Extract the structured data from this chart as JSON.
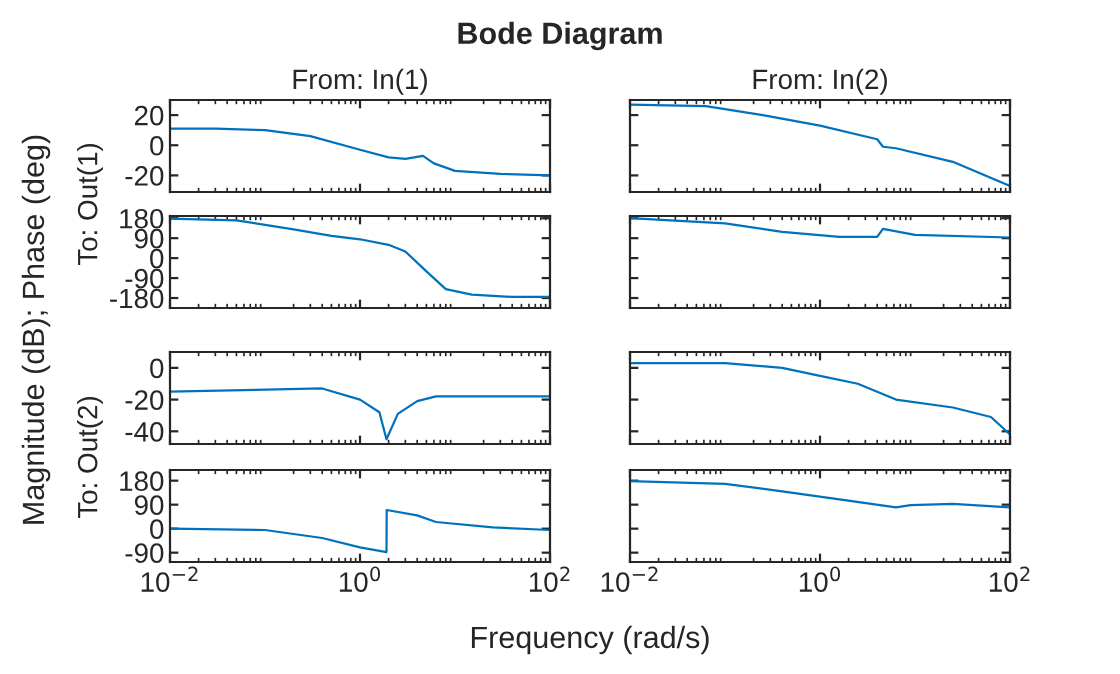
{
  "chart_data": [
    {
      "type": "line",
      "title": "Bode Diagram",
      "subtitle": "From: In(1)",
      "ylabel": "To: Out(1)",
      "annotations": [
        "Magnitude (dB); Phase (deg)"
      ],
      "log": "x",
      "xlim": [
        0.01,
        100
      ],
      "ylim": [
        -31,
        30
      ],
      "yticks": [
        -20,
        0,
        20
      ],
      "tick_labels": "y",
      "series": [
        {
          "color": "#0072bd",
          "x": [
            0.01,
            0.03,
            0.1,
            0.3,
            1,
            2,
            3,
            4.6,
            6,
            10,
            30,
            100
          ],
          "values": [
            11,
            11,
            10,
            6,
            -3,
            -8,
            -9,
            -7,
            -12,
            -17,
            -19,
            -20
          ]
        }
      ]
    },
    {
      "type": "line",
      "subtitle": "From: In(2)",
      "log": "x",
      "xlim": [
        0.01,
        100
      ],
      "ylim": [
        -31,
        30
      ],
      "yticks": [
        -20,
        0,
        20
      ],
      "tick_labels": false,
      "series": [
        {
          "color": "#0072bd",
          "x": [
            0.01,
            0.063,
            0.25,
            1,
            4,
            4.6,
            6.3,
            25,
            100
          ],
          "values": [
            27,
            26,
            20,
            13,
            4,
            -1,
            -2,
            -11,
            -27
          ]
        }
      ]
    },
    {
      "type": "line",
      "log": "x",
      "xlim": [
        0.01,
        100
      ],
      "ylim": [
        -225,
        190
      ],
      "yticks": [
        -180,
        -90,
        0,
        90,
        180
      ],
      "tick_labels": "y",
      "series": [
        {
          "color": "#0072bd",
          "x": [
            0.01,
            0.05,
            0.2,
            0.5,
            1,
            2,
            3,
            5,
            8,
            15,
            40,
            100
          ],
          "values": [
            178,
            170,
            130,
            100,
            85,
            60,
            30,
            -60,
            -140,
            -165,
            -175,
            -175
          ]
        }
      ]
    },
    {
      "type": "line",
      "log": "x",
      "xlim": [
        0.01,
        100
      ],
      "ylim": [
        -225,
        190
      ],
      "yticks": [
        -180,
        -90,
        0,
        90,
        180
      ],
      "tick_labels": false,
      "series": [
        {
          "color": "#0072bd",
          "x": [
            0.01,
            0.1,
            0.4,
            1.6,
            4,
            4.6,
            10,
            100
          ],
          "values": [
            180,
            157,
            118,
            96,
            96,
            132,
            105,
            93
          ]
        }
      ]
    },
    {
      "type": "line",
      "ylabel": "To: Out(2)",
      "log": "x",
      "xlim": [
        0.01,
        100
      ],
      "ylim": [
        -48,
        10
      ],
      "yticks": [
        -40,
        -20,
        0
      ],
      "tick_labels": "y",
      "series": [
        {
          "color": "#0072bd",
          "x": [
            0.01,
            0.4,
            1,
            1.6,
            1.9,
            2.5,
            4,
            6.3,
            100
          ],
          "values": [
            -15,
            -13,
            -20,
            -28,
            -45,
            -29,
            -21,
            -18,
            -18
          ]
        }
      ]
    },
    {
      "type": "line",
      "log": "x",
      "xlim": [
        0.01,
        100
      ],
      "ylim": [
        -48,
        10
      ],
      "yticks": [
        -40,
        -20,
        0
      ],
      "tick_labels": false,
      "series": [
        {
          "color": "#0072bd",
          "x": [
            0.01,
            0.1,
            0.4,
            1,
            2.5,
            6.3,
            25,
            63,
            100
          ],
          "values": [
            3,
            3,
            0,
            -5,
            -10,
            -20,
            -25,
            -31,
            -42
          ]
        }
      ]
    },
    {
      "type": "line",
      "xlabel": "Frequency (rad/s)",
      "log": "x",
      "xlim": [
        0.01,
        100
      ],
      "xticks": [
        {
          "value": 0.01,
          "label": "10$^{−2}$"
        },
        {
          "value": 1,
          "label": "10$^{0}$"
        },
        {
          "value": 100,
          "label": "10$^{2}$"
        }
      ],
      "ylim": [
        -125,
        220
      ],
      "yticks": [
        -90,
        0,
        90,
        180
      ],
      "series": [
        {
          "color": "#0072bd",
          "x": [
            0.01,
            0.1,
            0.4,
            1,
            1.9,
            1.91,
            4,
            6.3,
            25,
            100
          ],
          "values": [
            0,
            -5,
            -35,
            -70,
            -88,
            70,
            50,
            25,
            5,
            -5
          ]
        }
      ]
    },
    {
      "type": "line",
      "log": "x",
      "xlim": [
        0.01,
        100
      ],
      "xticks": [
        {
          "value": 0.01,
          "label": "10$^{−2}$"
        },
        {
          "value": 1,
          "label": "10$^{0}$"
        },
        {
          "value": 100,
          "label": "10$^{2}$"
        }
      ],
      "ylim": [
        -125,
        220
      ],
      "yticks": [
        -90,
        0,
        90,
        180
      ],
      "tick_labels": "x",
      "series": [
        {
          "color": "#0072bd",
          "x": [
            0.01,
            0.1,
            0.4,
            1.6,
            6.3,
            9,
            25,
            100
          ],
          "values": [
            178,
            168,
            140,
            110,
            80,
            88,
            93,
            80
          ]
        }
      ]
    }
  ]
}
